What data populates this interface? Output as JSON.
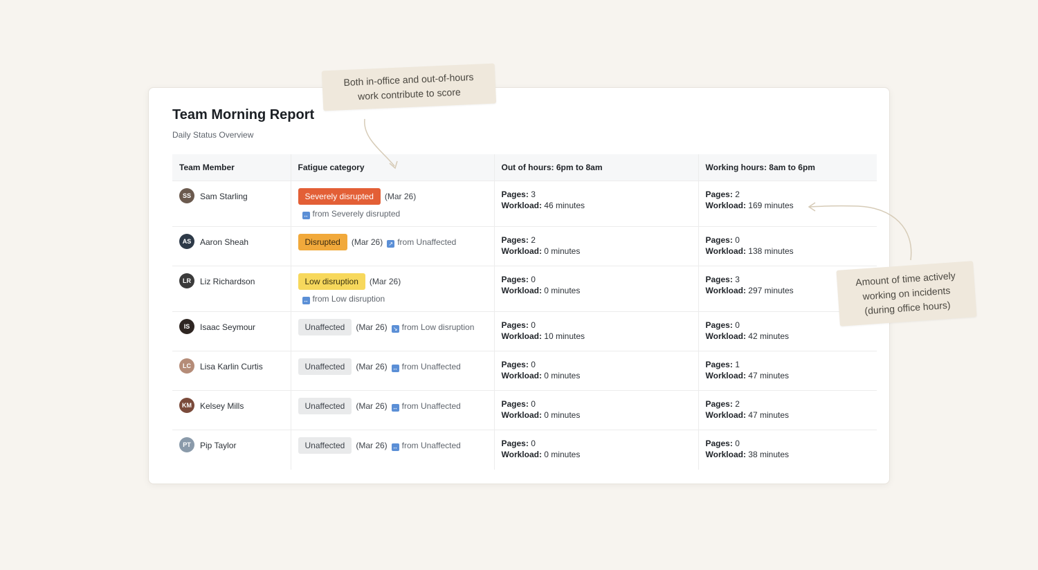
{
  "report": {
    "title": "Team Morning Report",
    "subtitle": "Daily Status Overview"
  },
  "table": {
    "columns": [
      "Team Member",
      "Fatigue category",
      "Out of hours: 6pm to 8am",
      "Working hours: 8am to 6pm"
    ],
    "pages_label": "Pages:",
    "workload_label": "Workload:",
    "rows": [
      {
        "name": "Sam Starling",
        "initials": "SS",
        "avatar_color": "#6b5a4e",
        "category": "Severely disrupted",
        "badge_bg": "#e35f36",
        "badge_fg": "#ffffff",
        "date": "(Mar 26)",
        "trend": "from Severely disrupted",
        "trend_icon": "arrow-both-icon",
        "trend_icon_color": "#5b8fd6",
        "trend_glyph": "↔",
        "ooh_pages": "3",
        "ooh_workload": "46 minutes",
        "wh_pages": "2",
        "wh_workload": "169 minutes"
      },
      {
        "name": "Aaron Sheah",
        "initials": "AS",
        "avatar_color": "#2e3a48",
        "category": "Disrupted",
        "badge_bg": "#f1a93b",
        "badge_fg": "#3a2a10",
        "date": "(Mar 26)",
        "trend": "from Unaffected",
        "trend_icon": "arrow-up-right-icon",
        "trend_icon_color": "#5b8fd6",
        "trend_glyph": "↗",
        "ooh_pages": "2",
        "ooh_workload": "0 minutes",
        "wh_pages": "0",
        "wh_workload": "138 minutes"
      },
      {
        "name": "Liz Richardson",
        "initials": "LR",
        "avatar_color": "#3b3b3b",
        "category": "Low disruption",
        "badge_bg": "#f7d85c",
        "badge_fg": "#3a3210",
        "date": "(Mar 26)",
        "trend": "from Low disruption",
        "trend_icon": "arrow-both-icon",
        "trend_icon_color": "#5b8fd6",
        "trend_glyph": "↔",
        "ooh_pages": "0",
        "ooh_workload": "0 minutes",
        "wh_pages": "3",
        "wh_workload": "297 minutes"
      },
      {
        "name": "Isaac Seymour",
        "initials": "IS",
        "avatar_color": "#2f2622",
        "category": "Unaffected",
        "badge_bg": "#e9eaeb",
        "badge_fg": "#3d4249",
        "date": "(Mar 26)",
        "trend": "from Low disruption",
        "trend_icon": "arrow-down-right-icon",
        "trend_icon_color": "#5b8fd6",
        "trend_glyph": "↘",
        "ooh_pages": "0",
        "ooh_workload": "10 minutes",
        "wh_pages": "0",
        "wh_workload": "42 minutes"
      },
      {
        "name": "Lisa Karlin Curtis",
        "initials": "LC",
        "avatar_color": "#b58c78",
        "category": "Unaffected",
        "badge_bg": "#e9eaeb",
        "badge_fg": "#3d4249",
        "date": "(Mar 26)",
        "trend": "from Unaffected",
        "trend_icon": "arrow-both-icon",
        "trend_icon_color": "#5b8fd6",
        "trend_glyph": "↔",
        "ooh_pages": "0",
        "ooh_workload": "0 minutes",
        "wh_pages": "1",
        "wh_workload": "47 minutes"
      },
      {
        "name": "Kelsey Mills",
        "initials": "KM",
        "avatar_color": "#7a4a3a",
        "category": "Unaffected",
        "badge_bg": "#e9eaeb",
        "badge_fg": "#3d4249",
        "date": "(Mar 26)",
        "trend": "from Unaffected",
        "trend_icon": "arrow-both-icon",
        "trend_icon_color": "#5b8fd6",
        "trend_glyph": "↔",
        "ooh_pages": "0",
        "ooh_workload": "0 minutes",
        "wh_pages": "2",
        "wh_workload": "47 minutes"
      },
      {
        "name": "Pip Taylor",
        "initials": "PT",
        "avatar_color": "#8a9aaa",
        "category": "Unaffected",
        "badge_bg": "#e9eaeb",
        "badge_fg": "#3d4249",
        "date": "(Mar 26)",
        "trend": "from Unaffected",
        "trend_icon": "arrow-both-icon",
        "trend_icon_color": "#5b8fd6",
        "trend_glyph": "↔",
        "ooh_pages": "0",
        "ooh_workload": "0 minutes",
        "wh_pages": "0",
        "wh_workload": "38 minutes"
      }
    ]
  },
  "annotations": {
    "score_note_line1": "Both in-office and out-of-hours",
    "score_note_line2": "work contribute to score",
    "workload_note_line1": "Amount of time actively",
    "workload_note_line2": "working on incidents",
    "workload_note_line3": "(during office hours)"
  },
  "colors": {
    "background": "#f7f4ef",
    "callout_bg": "#efe8dc",
    "arrow": "#d6cbb7"
  }
}
